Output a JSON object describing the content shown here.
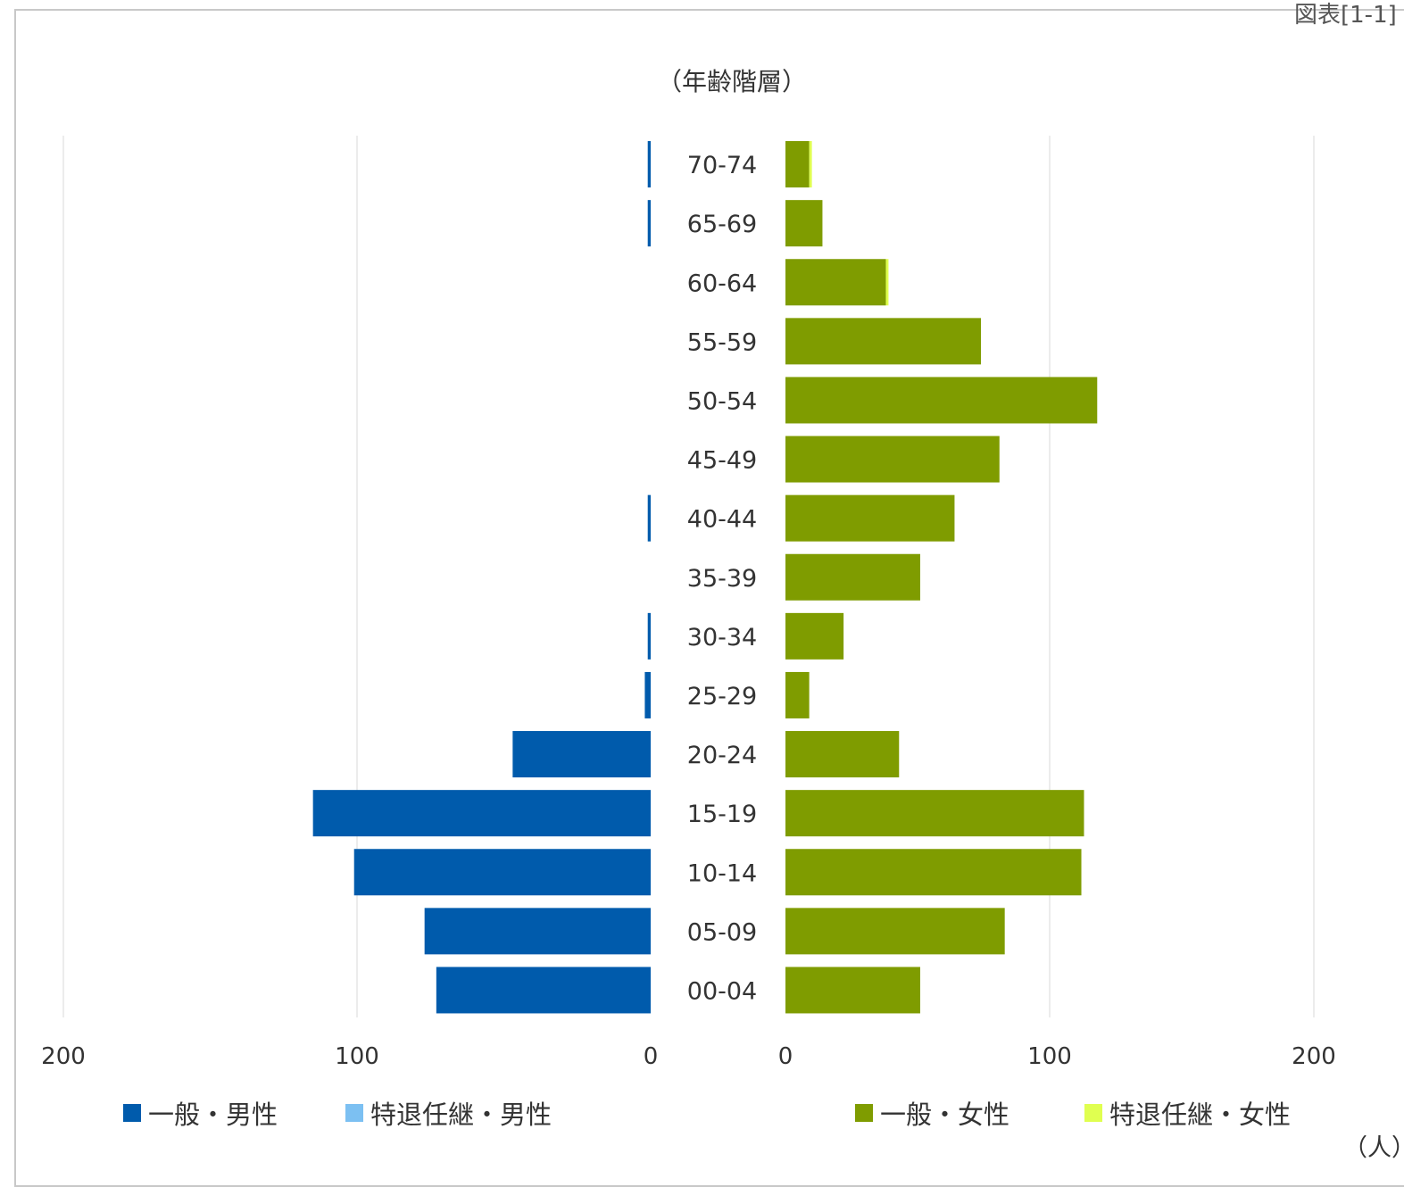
{
  "corner_label": "図表[1-1]",
  "unit_label": "（人）",
  "chart_data": {
    "type": "bar",
    "orientation": "horizontal",
    "layout": "population-pyramid",
    "title": "（年齢階層）",
    "categories": [
      "70-74",
      "65-69",
      "60-64",
      "55-59",
      "50-54",
      "45-49",
      "40-44",
      "35-39",
      "30-34",
      "25-29",
      "20-24",
      "15-19",
      "10-14",
      "05-09",
      "00-04"
    ],
    "left_panel": {
      "xlim": [
        200,
        0
      ],
      "ticks": [
        "200",
        "100",
        "0"
      ],
      "series": [
        {
          "name": "一般・男性",
          "color": "#005bac",
          "values": [
            1,
            1,
            0,
            0,
            0,
            0,
            1,
            0,
            1,
            2,
            47,
            115,
            101,
            77,
            73
          ]
        },
        {
          "name": "特退任継・男性",
          "color": "#7cc0f2",
          "values": [
            0,
            0,
            0,
            0,
            0,
            0,
            0,
            0,
            0,
            0,
            0,
            0,
            0,
            0,
            0
          ]
        }
      ]
    },
    "right_panel": {
      "xlim": [
        0,
        200
      ],
      "ticks": [
        "0",
        "100",
        "200"
      ],
      "series": [
        {
          "name": "一般・女性",
          "color": "#7f9c00",
          "values": [
            9,
            14,
            38,
            74,
            118,
            81,
            64,
            51,
            22,
            9,
            43,
            113,
            112,
            83,
            51
          ]
        },
        {
          "name": "特退任継・女性",
          "color": "#e0ff50",
          "values": [
            1,
            0,
            1,
            0,
            0,
            0,
            0,
            0,
            0,
            0,
            0,
            0,
            0,
            0,
            0
          ]
        }
      ]
    },
    "grid": true,
    "legend_position": "bottom"
  }
}
